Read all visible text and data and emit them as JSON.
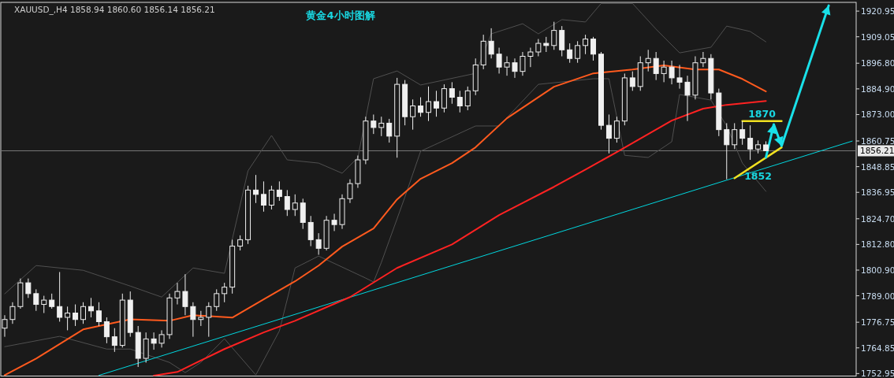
{
  "chart_data": {
    "type": "candlestick",
    "title": "黄金4小时图解",
    "subtitle": "XAUUSD_,H4  1858.94 1860.60 1856.14 1856.21",
    "categories": [
      null,
      null,
      null,
      null,
      null,
      null,
      null,
      null,
      null,
      null,
      null,
      null,
      null,
      null,
      null,
      null,
      null,
      null,
      null,
      null,
      null,
      null,
      null,
      null,
      null,
      null,
      null,
      null,
      null,
      null,
      null,
      null,
      null,
      null,
      null,
      null,
      null,
      null,
      null,
      null,
      null,
      null,
      null,
      null,
      null,
      null,
      null,
      null,
      null,
      null,
      null,
      null,
      null,
      null,
      null,
      null,
      null,
      null,
      null,
      null,
      null,
      null,
      null,
      null,
      null,
      null,
      null,
      null,
      null,
      null,
      null,
      null,
      null,
      null,
      null,
      null,
      null,
      null,
      null,
      null,
      null,
      null,
      null,
      null,
      null,
      null,
      null,
      null,
      null,
      null,
      null,
      null,
      null,
      null,
      null,
      null,
      null,
      null,
      null,
      null,
      null,
      null,
      null,
      null,
      null,
      null,
      null,
      null,
      null
    ],
    "ohlc": [
      [
        1774,
        1780,
        1770,
        1778
      ],
      [
        1778,
        1786,
        1776,
        1784
      ],
      [
        1784,
        1797,
        1783,
        1795
      ],
      [
        1795,
        1797,
        1788,
        1790
      ],
      [
        1790,
        1792,
        1782,
        1785
      ],
      [
        1785,
        1789,
        1781,
        1787
      ],
      [
        1787,
        1790,
        1783,
        1784
      ],
      [
        1784,
        1800,
        1777,
        1779
      ],
      [
        1779,
        1784,
        1773,
        1781
      ],
      [
        1781,
        1785,
        1775,
        1778
      ],
      [
        1778,
        1786,
        1776,
        1784
      ],
      [
        1784,
        1788,
        1779,
        1782
      ],
      [
        1782,
        1786,
        1775,
        1777
      ],
      [
        1777,
        1779,
        1767,
        1770
      ],
      [
        1770,
        1774,
        1763,
        1766
      ],
      [
        1766,
        1790,
        1765,
        1787
      ],
      [
        1787,
        1791,
        1770,
        1772
      ],
      [
        1772,
        1775,
        1756,
        1760
      ],
      [
        1760,
        1772,
        1758,
        1769
      ],
      [
        1769,
        1772,
        1764,
        1767
      ],
      [
        1767,
        1773,
        1765,
        1771
      ],
      [
        1771,
        1790,
        1769,
        1788
      ],
      [
        1788,
        1795,
        1785,
        1791
      ],
      [
        1791,
        1799,
        1780,
        1784
      ],
      [
        1784,
        1786,
        1770,
        1778
      ],
      [
        1778,
        1782,
        1775,
        1779
      ],
      [
        1779,
        1786,
        1770,
        1784
      ],
      [
        1784,
        1792,
        1782,
        1790
      ],
      [
        1790,
        1795,
        1786,
        1793
      ],
      [
        1793,
        1815,
        1790,
        1812
      ],
      [
        1812,
        1817,
        1810,
        1815
      ],
      [
        1815,
        1840,
        1813,
        1838
      ],
      [
        1838,
        1845,
        1832,
        1836
      ],
      [
        1836,
        1842,
        1828,
        1831
      ],
      [
        1831,
        1840,
        1829,
        1838
      ],
      [
        1838,
        1842,
        1833,
        1835
      ],
      [
        1835,
        1838,
        1826,
        1829
      ],
      [
        1829,
        1836,
        1826,
        1832
      ],
      [
        1832,
        1834,
        1820,
        1823
      ],
      [
        1823,
        1826,
        1812,
        1815
      ],
      [
        1815,
        1818,
        1808,
        1811
      ],
      [
        1811,
        1826,
        1810,
        1824
      ],
      [
        1824,
        1827,
        1819,
        1822
      ],
      [
        1822,
        1836,
        1820,
        1834
      ],
      [
        1834,
        1843,
        1832,
        1841
      ],
      [
        1841,
        1854,
        1839,
        1852
      ],
      [
        1852,
        1872,
        1850,
        1870
      ],
      [
        1870,
        1873,
        1864,
        1867
      ],
      [
        1867,
        1872,
        1863,
        1869
      ],
      [
        1869,
        1871,
        1860,
        1863
      ],
      [
        1863,
        1890,
        1853,
        1887
      ],
      [
        1887,
        1889,
        1868,
        1872
      ],
      [
        1872,
        1880,
        1866,
        1877
      ],
      [
        1877,
        1881,
        1872,
        1874
      ],
      [
        1874,
        1886,
        1870,
        1879
      ],
      [
        1879,
        1884,
        1872,
        1876
      ],
      [
        1876,
        1887,
        1874,
        1885
      ],
      [
        1885,
        1888,
        1878,
        1881
      ],
      [
        1881,
        1884,
        1874,
        1877
      ],
      [
        1877,
        1886,
        1875,
        1884
      ],
      [
        1884,
        1899,
        1882,
        1896
      ],
      [
        1896,
        1910,
        1894,
        1907
      ],
      [
        1907,
        1913,
        1899,
        1901
      ],
      [
        1901,
        1904,
        1892,
        1895
      ],
      [
        1895,
        1900,
        1891,
        1897
      ],
      [
        1897,
        1899,
        1890,
        1893
      ],
      [
        1893,
        1902,
        1891,
        1900
      ],
      [
        1900,
        1904,
        1895,
        1902
      ],
      [
        1902,
        1908,
        1900,
        1906
      ],
      [
        1906,
        1909,
        1902,
        1905
      ],
      [
        1905,
        1916,
        1903,
        1912
      ],
      [
        1912,
        1914,
        1900,
        1903
      ],
      [
        1903,
        1906,
        1897,
        1899
      ],
      [
        1899,
        1907,
        1897,
        1905
      ],
      [
        1905,
        1910,
        1901,
        1908
      ],
      [
        1908,
        1909,
        1898,
        1901
      ],
      [
        1901,
        1902,
        1866,
        1868
      ],
      [
        1868,
        1873,
        1855,
        1862
      ],
      [
        1862,
        1872,
        1860,
        1870
      ],
      [
        1870,
        1892,
        1868,
        1890
      ],
      [
        1890,
        1893,
        1884,
        1886
      ],
      [
        1886,
        1900,
        1884,
        1897
      ],
      [
        1897,
        1903,
        1893,
        1899
      ],
      [
        1899,
        1902,
        1889,
        1892
      ],
      [
        1892,
        1898,
        1888,
        1895
      ],
      [
        1895,
        1898,
        1887,
        1890
      ],
      [
        1890,
        1896,
        1885,
        1888
      ],
      [
        1888,
        1891,
        1870,
        1882
      ],
      [
        1882,
        1900,
        1880,
        1897
      ],
      [
        1897,
        1902,
        1895,
        1899
      ],
      [
        1899,
        1901,
        1880,
        1883
      ],
      [
        1883,
        1885,
        1863,
        1866
      ],
      [
        1866,
        1869,
        1843,
        1859
      ],
      [
        1859,
        1869,
        1857,
        1866
      ],
      [
        1866,
        1870,
        1859,
        1862
      ],
      [
        1862,
        1868,
        1852,
        1857
      ],
      [
        1857,
        1861,
        1855,
        1859
      ],
      [
        1858.94,
        1860.6,
        1856.14,
        1856.21
      ],
      null,
      null,
      null,
      null,
      null,
      null,
      null,
      null,
      null,
      null,
      null
    ],
    "ylim": [
      1751.8,
      1925.0
    ],
    "yticks": [
      {
        "value": 1752.95,
        "label": "1752.95"
      },
      {
        "value": 1764.85,
        "label": "1764.85"
      },
      {
        "value": 1776.75,
        "label": "1776.75"
      },
      {
        "value": 1789.0,
        "label": "1789.00"
      },
      {
        "value": 1800.9,
        "label": "1800.90"
      },
      {
        "value": 1812.8,
        "label": "1812.80"
      },
      {
        "value": 1824.7,
        "label": "1824.70"
      },
      {
        "value": 1836.95,
        "label": "1836.95"
      },
      {
        "value": 1848.85,
        "label": "1848.85"
      },
      {
        "value": 1860.75,
        "label": "1860.75"
      },
      {
        "value": 1873.0,
        "label": "1873.00"
      },
      {
        "value": 1884.9,
        "label": "1884.90"
      },
      {
        "value": 1896.8,
        "label": "1896.80"
      },
      {
        "value": 1909.05,
        "label": "1909.05"
      },
      {
        "value": 1920.95,
        "label": "1920.95"
      }
    ],
    "ref_lines": [
      {
        "axis": "y",
        "value": 1856.21,
        "label": "1856.21",
        "color": "#7a7a7a"
      }
    ],
    "series": [
      {
        "type": "line",
        "color": "#505050",
        "values": [
          1789.9,
          null,
          null,
          null,
          1803.0,
          null,
          null,
          null,
          null,
          null,
          1800.8,
          null,
          null,
          null,
          null,
          null,
          1793.5,
          null,
          null,
          null,
          1788.4,
          null,
          null,
          null,
          1801.9,
          null,
          null,
          null,
          1799.4,
          null,
          null,
          1846.9,
          null,
          null,
          1863.3,
          null,
          1852.0,
          null,
          null,
          null,
          1850.5,
          null,
          null,
          1845.8,
          null,
          1853.1,
          null,
          1889.6,
          null,
          null,
          1893.2,
          null,
          null,
          1886.7,
          null,
          null,
          null,
          null,
          null,
          null,
          1892.1,
          null,
          1910.4,
          null,
          null,
          null,
          1915.1,
          null,
          1910.4,
          null,
          null,
          1917.0,
          null,
          null,
          1915.9,
          null,
          1924.5,
          null,
          null,
          null,
          1924.5,
          null,
          null,
          1912.6,
          null,
          null,
          1901.6,
          null,
          null,
          null,
          1904.2,
          null,
          1914.0,
          null,
          null,
          1911.5,
          null,
          1906.7,
          null,
          null,
          null,
          null,
          null,
          null,
          null,
          null,
          null,
          null,
          null
        ]
      },
      {
        "type": "line",
        "color": "#505050",
        "values": [
          1765.4,
          null,
          null,
          null,
          null,
          null,
          null,
          1770.2,
          null,
          null,
          null,
          null,
          null,
          1764.3,
          null,
          null,
          1764.3,
          null,
          null,
          null,
          null,
          1758.1,
          null,
          1753.4,
          null,
          1758.1,
          null,
          null,
          1769.1,
          null,
          null,
          null,
          1752.3,
          null,
          null,
          1772.7,
          null,
          1801.9,
          null,
          null,
          1807.4,
          null,
          null,
          null,
          null,
          null,
          1797.2,
          1795.4,
          1804.5,
          null,
          null,
          1834.8,
          null,
          1856.0,
          null,
          null,
          null,
          null,
          null,
          null,
          1867.7,
          null,
          null,
          1867.7,
          null,
          null,
          null,
          null,
          1887.0,
          null,
          null,
          null,
          null,
          null,
          null,
          1889.6,
          null,
          1889.6,
          null,
          1854.1,
          null,
          null,
          1853.1,
          null,
          null,
          1860.4,
          1882.3,
          null,
          null,
          null,
          1879.7,
          null,
          1867.7,
          null,
          1850.5,
          null,
          null,
          1837.4,
          null,
          null,
          null,
          null,
          null,
          null,
          null,
          null,
          null,
          null,
          null
        ]
      },
      {
        "type": "line",
        "color": "#00d8e0",
        "values": [
          null,
          null,
          null,
          null,
          null,
          null,
          null,
          null,
          null,
          null,
          null,
          null,
          1752.1,
          null,
          null,
          null,
          null,
          null,
          null,
          null,
          null,
          null,
          null,
          null,
          null,
          null,
          null,
          null,
          null,
          null,
          null,
          null,
          null,
          null,
          null,
          null,
          null,
          null,
          null,
          null,
          null,
          null,
          null,
          null,
          null,
          null,
          null,
          null,
          null,
          null,
          null,
          null,
          null,
          null,
          null,
          null,
          null,
          null,
          null,
          null,
          null,
          null,
          null,
          null,
          null,
          null,
          null,
          null,
          null,
          null,
          null,
          null,
          null,
          null,
          null,
          null,
          null,
          null,
          null,
          null,
          null,
          null,
          null,
          null,
          null,
          null,
          null,
          null,
          null,
          null,
          null,
          null,
          null,
          null,
          null,
          null,
          null,
          null,
          null,
          null,
          null,
          null,
          null,
          null,
          null,
          null,
          null,
          null,
          1860.7
        ]
      },
      {
        "type": "line",
        "color": "#ff5a1e",
        "values": [
          1752.2,
          null,
          null,
          null,
          1759.9,
          null,
          null,
          null,
          null,
          null,
          1773.4,
          null,
          null,
          null,
          null,
          null,
          1778.1,
          null,
          null,
          null,
          null,
          1777.4,
          null,
          null,
          1780,
          null,
          null,
          null,
          null,
          1778.9,
          null,
          null,
          null,
          1787.3,
          null,
          null,
          null,
          1795.7,
          null,
          null,
          1803,
          null,
          null,
          1811.8,
          null,
          null,
          null,
          1820.2,
          null,
          null,
          1833.7,
          null,
          null,
          1843.2,
          null,
          null,
          null,
          1850.5,
          null,
          null,
          1857.8,
          null,
          null,
          null,
          1871.3,
          null,
          null,
          1878.6,
          null,
          null,
          1885.9,
          null,
          null,
          null,
          null,
          1892.1,
          null,
          null,
          null,
          null,
          1893.9,
          null,
          null,
          null,
          1895.8,
          null,
          null,
          null,
          1893.9,
          null,
          null,
          1893.9,
          null,
          null,
          1889.5,
          null,
          null,
          1883.7,
          null,
          null,
          null,
          null,
          null,
          null,
          null,
          null,
          null,
          null,
          null
        ]
      },
      {
        "type": "line",
        "color": "#ff2222",
        "values": [
          null,
          null,
          null,
          null,
          null,
          null,
          null,
          null,
          null,
          null,
          null,
          null,
          null,
          null,
          null,
          null,
          null,
          null,
          null,
          1752.0,
          null,
          null,
          1753.7,
          null,
          null,
          null,
          null,
          null,
          1764.3,
          null,
          null,
          null,
          null,
          1772,
          null,
          null,
          null,
          1777.4,
          null,
          null,
          null,
          null,
          null,
          null,
          1788.4,
          null,
          null,
          null,
          null,
          null,
          1801.9,
          null,
          null,
          null,
          null,
          null,
          null,
          1812.8,
          null,
          null,
          null,
          null,
          null,
          1826.4,
          null,
          null,
          null,
          null,
          null,
          null,
          1839.5,
          null,
          null,
          null,
          1847.5,
          null,
          null,
          null,
          1855.6,
          null,
          null,
          null,
          null,
          null,
          null,
          1870.2,
          null,
          null,
          null,
          1875.7,
          null,
          null,
          1877.5,
          null,
          null,
          null,
          null,
          1879.3,
          null,
          null,
          null,
          null,
          null,
          null,
          null,
          null,
          null,
          null,
          null
        ]
      },
      {
        "type": "line",
        "name": "1870",
        "color": "#f0e020",
        "values": [
          null,
          null,
          null,
          null,
          null,
          null,
          null,
          null,
          null,
          null,
          null,
          null,
          null,
          null,
          null,
          null,
          null,
          null,
          null,
          null,
          null,
          null,
          null,
          null,
          null,
          null,
          null,
          null,
          null,
          null,
          null,
          null,
          null,
          null,
          null,
          null,
          null,
          null,
          null,
          null,
          null,
          null,
          null,
          null,
          null,
          null,
          null,
          null,
          null,
          null,
          null,
          null,
          null,
          null,
          null,
          null,
          null,
          null,
          null,
          null,
          null,
          null,
          null,
          null,
          null,
          null,
          null,
          null,
          null,
          null,
          null,
          null,
          null,
          null,
          null,
          null,
          null,
          null,
          null,
          null,
          null,
          null,
          null,
          null,
          null,
          null,
          null,
          null,
          null,
          null,
          null,
          null,
          null,
          null,
          1870,
          null,
          null,
          null,
          null,
          1870,
          null,
          null,
          null,
          null,
          null,
          null,
          null,
          null,
          null
        ]
      },
      {
        "type": "line",
        "name": "1852",
        "color": "#f0e020",
        "values": [
          null,
          null,
          null,
          null,
          null,
          null,
          null,
          null,
          null,
          null,
          null,
          null,
          null,
          null,
          null,
          null,
          null,
          null,
          null,
          null,
          null,
          null,
          null,
          null,
          null,
          null,
          null,
          null,
          null,
          null,
          null,
          null,
          null,
          null,
          null,
          null,
          null,
          null,
          null,
          null,
          null,
          null,
          null,
          null,
          null,
          null,
          null,
          null,
          null,
          null,
          null,
          null,
          null,
          null,
          null,
          null,
          null,
          null,
          null,
          null,
          null,
          null,
          null,
          null,
          null,
          null,
          null,
          null,
          null,
          null,
          null,
          null,
          null,
          null,
          null,
          null,
          null,
          null,
          null,
          null,
          null,
          null,
          null,
          null,
          null,
          null,
          null,
          null,
          null,
          null,
          null,
          null,
          null,
          1843.5,
          null,
          null,
          null,
          null,
          null,
          1857.8,
          null,
          null,
          null,
          null,
          null,
          null,
          null,
          null,
          null
        ]
      },
      {
        "type": "line",
        "color": "#19e0e8",
        "values": [
          null,
          null,
          null,
          null,
          null,
          null,
          null,
          null,
          null,
          null,
          null,
          null,
          null,
          null,
          null,
          null,
          null,
          null,
          null,
          null,
          null,
          null,
          null,
          null,
          null,
          null,
          null,
          null,
          null,
          null,
          null,
          null,
          null,
          null,
          null,
          null,
          null,
          null,
          null,
          null,
          null,
          null,
          null,
          null,
          null,
          null,
          null,
          null,
          null,
          null,
          null,
          null,
          null,
          null,
          null,
          null,
          null,
          null,
          null,
          null,
          null,
          null,
          null,
          null,
          null,
          null,
          null,
          null,
          null,
          null,
          null,
          null,
          null,
          null,
          null,
          null,
          null,
          null,
          null,
          null,
          null,
          null,
          null,
          null,
          null,
          null,
          null,
          null,
          null,
          null,
          null,
          null,
          null,
          null,
          null,
          null,
          null,
          1853.1,
          1868.4,
          1858.5,
          null,
          null,
          null,
          null,
          null,
          1923.5,
          null,
          null,
          null
        ]
      }
    ],
    "tick_labels": "y"
  }
}
